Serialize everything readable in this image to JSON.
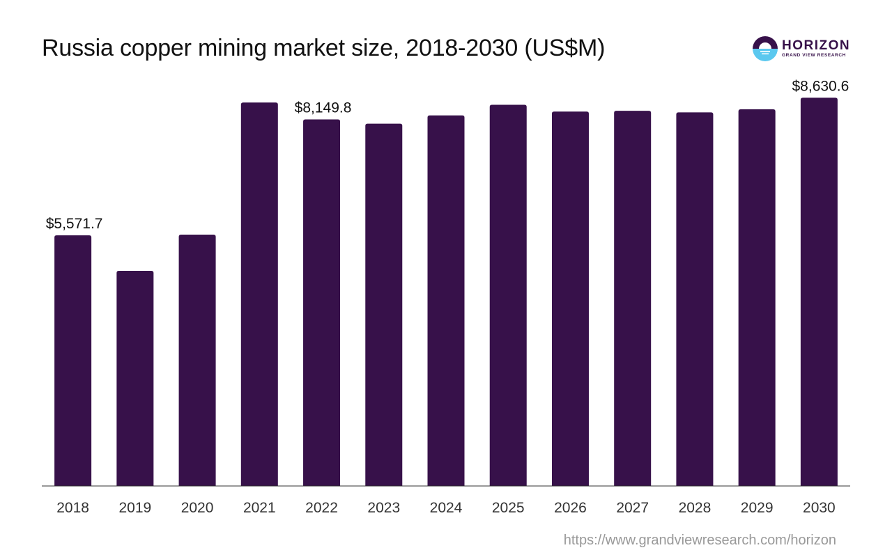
{
  "header": {
    "title": "Russia copper mining market size, 2018-2030 (US$M)"
  },
  "logo": {
    "icon": "horizon-sun-icon",
    "name": "HORIZON",
    "subtitle": "GRAND VIEW RESEARCH"
  },
  "footer": {
    "source_url": "https://www.grandviewresearch.com/horizon"
  },
  "colors": {
    "bar": "#37114a",
    "axis": "#333333",
    "label": "#111111",
    "tick": "#333333",
    "logo_top": "#37114a",
    "logo_bottom": "#5bc8ef"
  },
  "chart_data": {
    "type": "bar",
    "title": "Russia copper mining market size, 2018-2030 (US$M)",
    "xlabel": "",
    "ylabel": "",
    "categories": [
      "2018",
      "2019",
      "2020",
      "2021",
      "2022",
      "2023",
      "2024",
      "2025",
      "2026",
      "2027",
      "2028",
      "2029",
      "2030"
    ],
    "values": [
      5571.7,
      4783,
      5588,
      8524,
      8149.8,
      8054,
      8239,
      8474,
      8323,
      8340,
      8306,
      8373,
      8630.6
    ],
    "data_labels": [
      {
        "index": 0,
        "text": "$5,571.7"
      },
      {
        "index": 4,
        "text": "$8,149.8"
      },
      {
        "index": 12,
        "text": "$8,630.6"
      }
    ],
    "ylim": [
      0,
      8900
    ],
    "grid": false,
    "legend": "none"
  }
}
